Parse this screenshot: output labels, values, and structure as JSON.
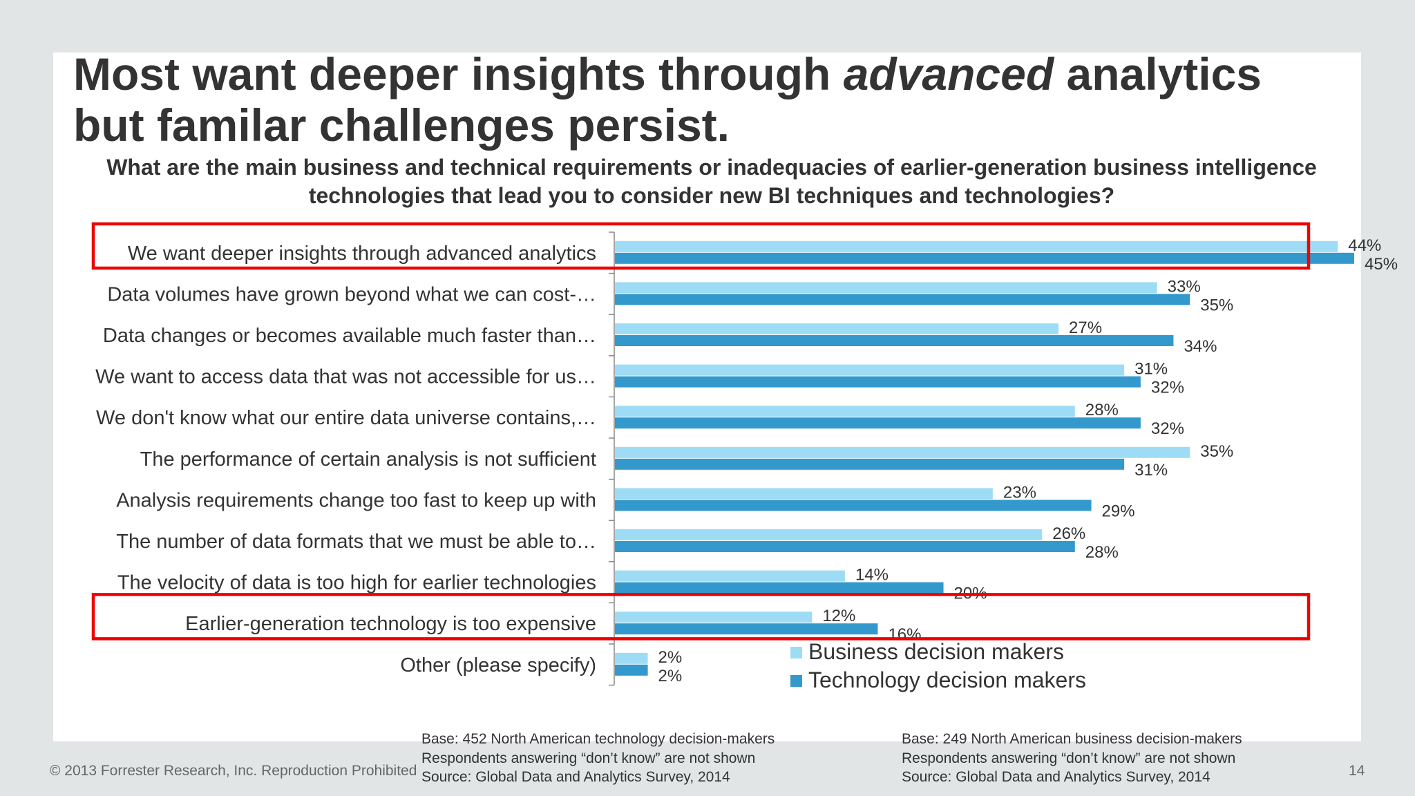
{
  "title": {
    "line1_pre": "Most want deeper insights through ",
    "line1_em": "advanced",
    "line1_post": " analytics",
    "line2": "but familar challenges persist."
  },
  "chart_data": {
    "type": "bar",
    "orientation": "horizontal",
    "title": "What are the main business and technical requirements or inadequacies of earlier-generation business intelligence technologies that lead you to consider new BI techniques and technologies?",
    "categories": [
      "We want deeper insights through advanced analytics",
      "Data volumes have grown beyond what we can cost-…",
      "Data changes or becomes available much faster than…",
      "We want to access data that was not accessible for us…",
      "We don't know what our entire data universe contains,…",
      "The performance of certain analysis is not sufficient",
      "Analysis requirements change too fast to keep up with",
      "The number of data formats that we must be able to…",
      "The velocity of data is too high for earlier technologies",
      "Earlier-generation technology is too expensive",
      "Other (please specify)"
    ],
    "series": [
      {
        "name": "Business decision makers",
        "color": "#9edcf6",
        "values": [
          44,
          33,
          27,
          31,
          28,
          35,
          23,
          26,
          14,
          12,
          2
        ]
      },
      {
        "name": "Technology decision makers",
        "color": "#3399cc",
        "values": [
          45,
          35,
          34,
          32,
          32,
          31,
          29,
          28,
          20,
          16,
          2
        ]
      }
    ],
    "value_suffix": "%",
    "xlim": [
      0,
      45
    ],
    "grid": false,
    "legend_placement": "bottom-center",
    "highlighted_categories": [
      0,
      9
    ],
    "highlight_color": "#ee0000"
  },
  "footnotes": {
    "left": [
      "Base: 452 North American technology decision-makers",
      "Respondents answering “don’t know” are not shown",
      "Source: Global Data and Analytics Survey, 2014"
    ],
    "right": [
      "Base: 249 North American business decision-makers",
      "Respondents answering “don’t know” are not shown",
      "Source: Global Data and Analytics Survey, 2014"
    ]
  },
  "copyright": "© 2013 Forrester Research, Inc. Reproduction Prohibited",
  "page_number": "14"
}
